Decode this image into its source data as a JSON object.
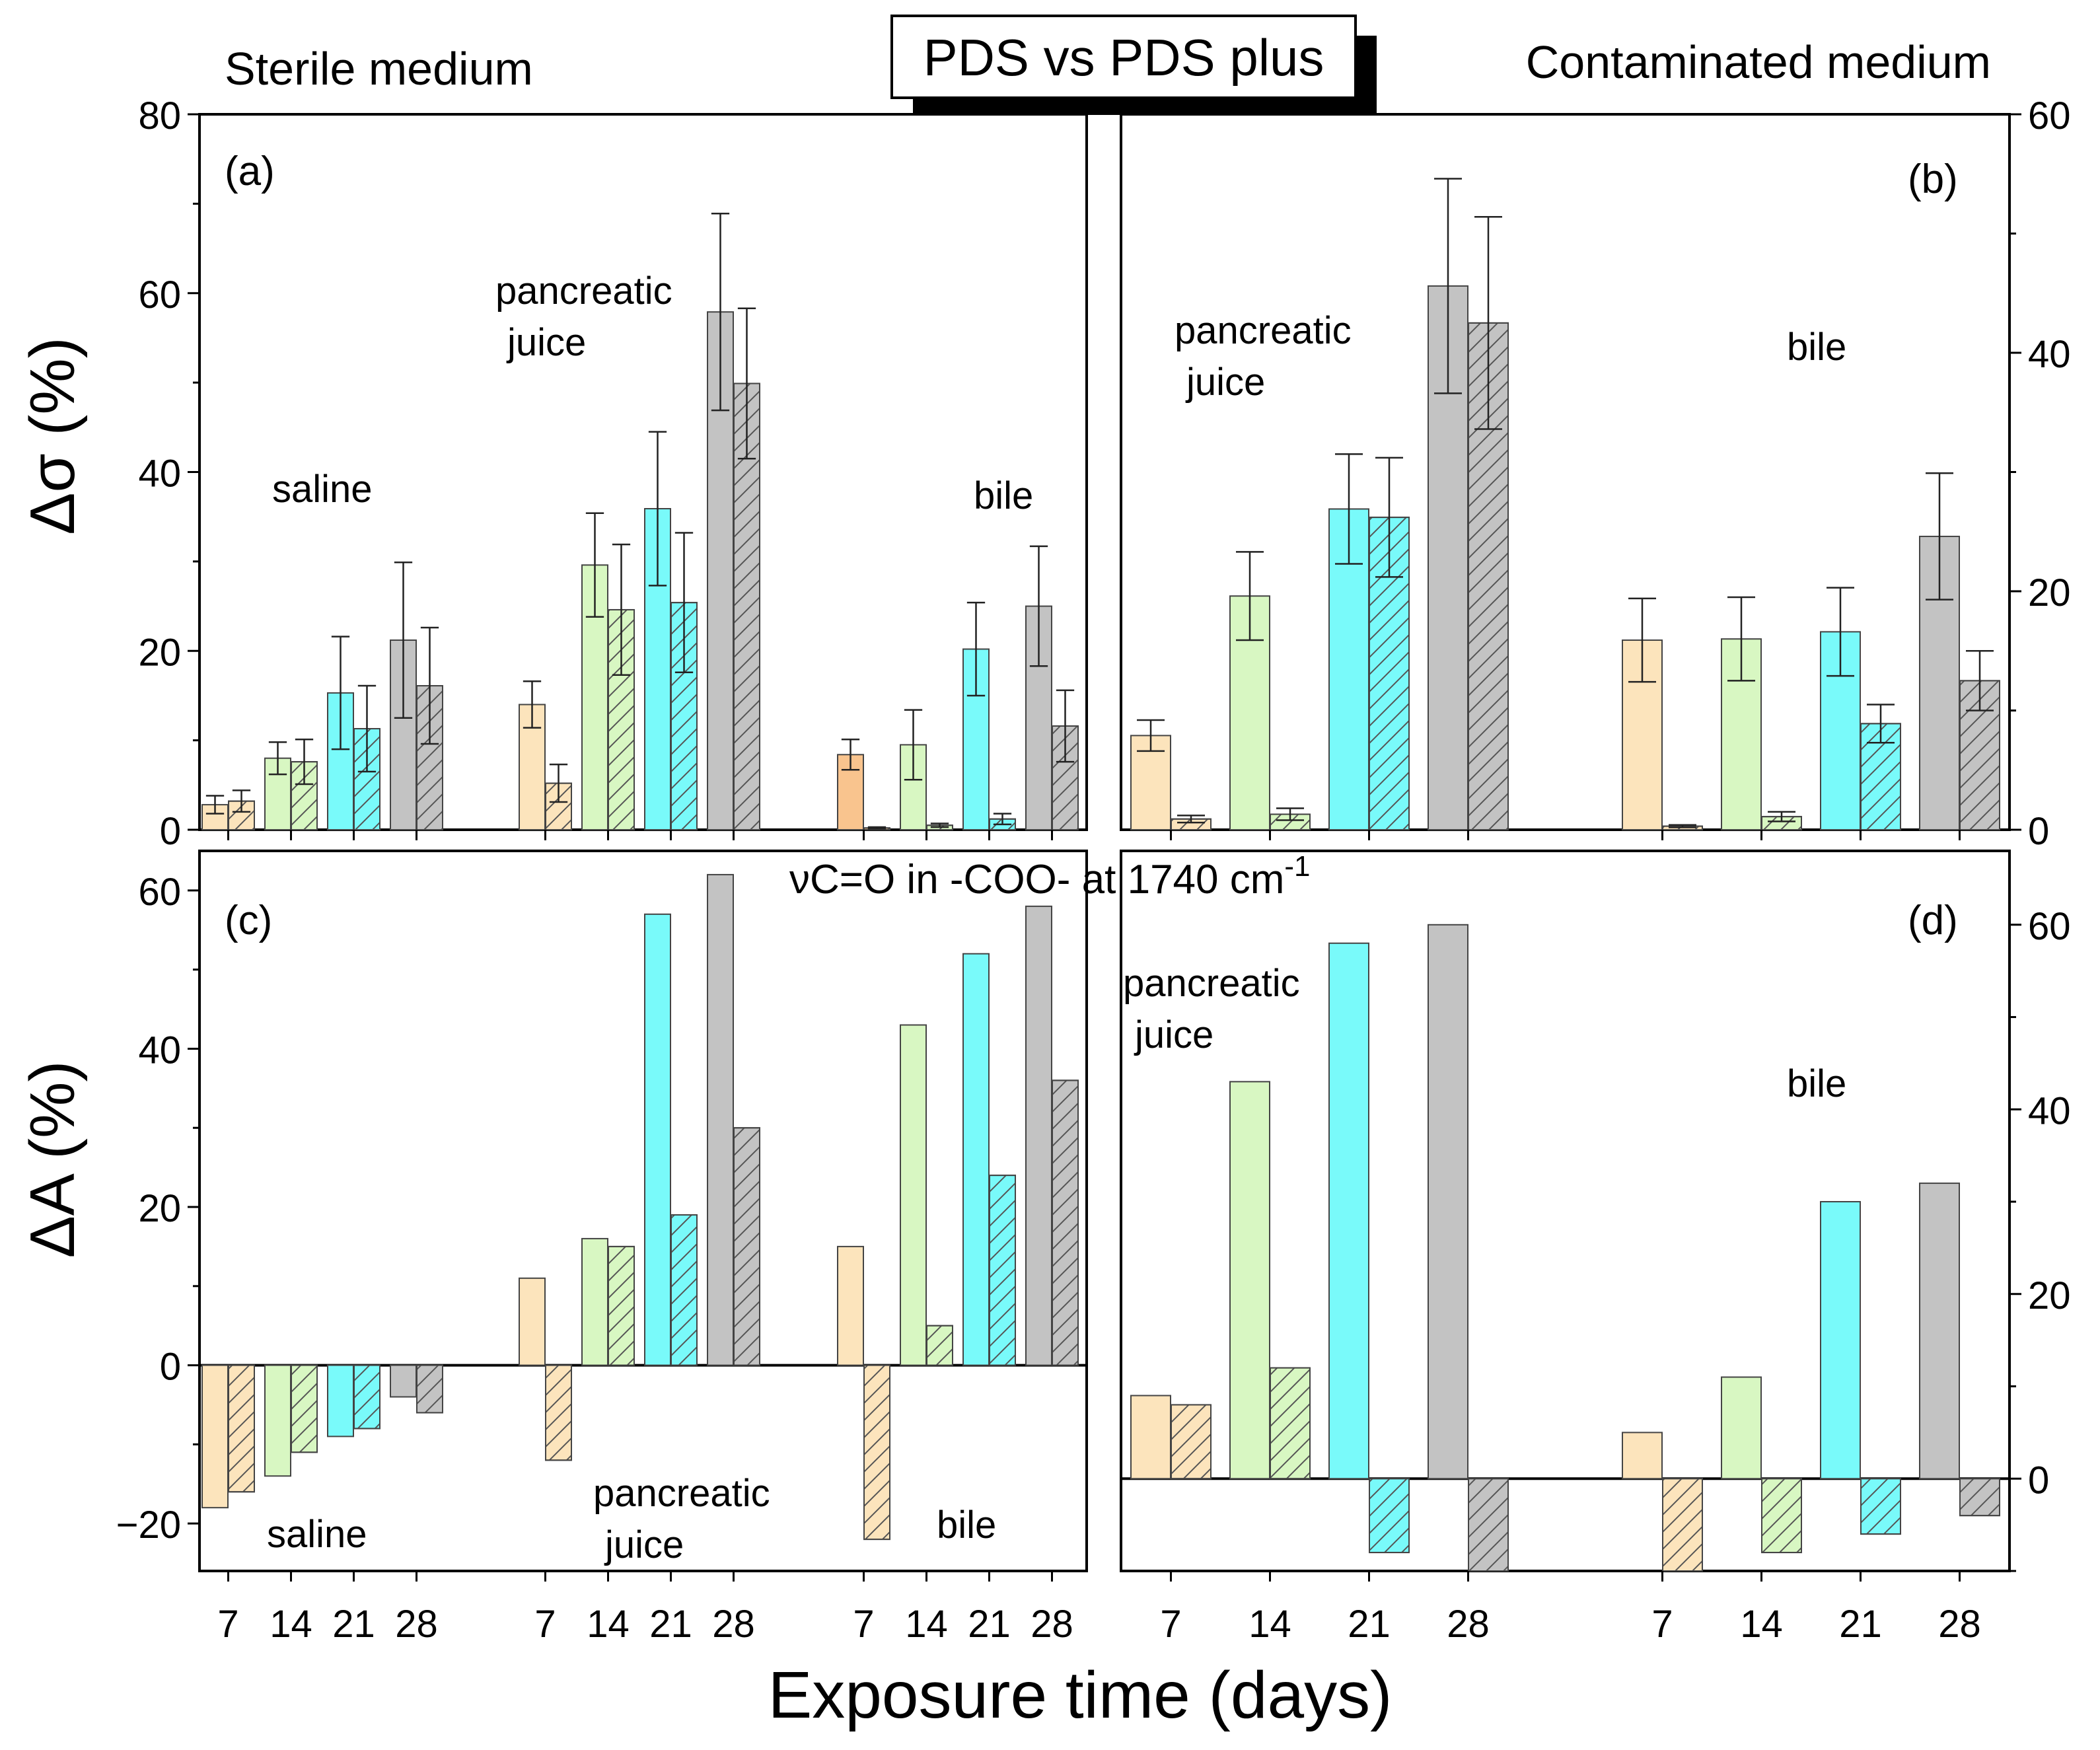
{
  "colors": {
    "day7": "#FCE4BC",
    "day7_highlight": "#F9C48E",
    "day14": "#D8F7C2",
    "day21": "#79FAFA",
    "day28": "#C3C3C3",
    "box_shadow": "#000000"
  },
  "labels": {
    "title_box": "PDS vs PDS plus",
    "sterile": "Sterile medium",
    "contaminated": "Contaminated medium",
    "section_c_title": "νC=O in -COO- at 1740 cm",
    "section_c_sup": "-1",
    "y_top": "Δσ (%)",
    "y_bottom": "ΔA (%)",
    "x_axis": "Exposure time (days)"
  },
  "chart_data": [
    {
      "id": "a",
      "type": "bar",
      "panel_label": "(a)",
      "ylim": [
        0,
        80
      ],
      "yticks": [
        0,
        20,
        40,
        60,
        80
      ],
      "axis_side": "left",
      "annotations": [
        {
          "text": "saline",
          "lines": [
            "saline"
          ]
        },
        {
          "text": "pancreatic juice",
          "lines": [
            "pancreatic",
            "juice"
          ]
        },
        {
          "text": "bile",
          "lines": [
            "bile"
          ]
        }
      ],
      "groups": [
        {
          "name": "saline",
          "categories": [
            "7",
            "14",
            "21",
            "28"
          ],
          "pds": [
            2.8,
            8,
            15.3,
            21.2
          ],
          "pds_err": [
            1,
            1.8,
            6.3,
            8.7
          ],
          "plus": [
            3.2,
            7.6,
            11.3,
            16.1
          ],
          "plus_err": [
            1.2,
            2.5,
            4.8,
            6.5
          ]
        },
        {
          "name": "pancreatic juice",
          "categories": [
            "7",
            "14",
            "21",
            "28"
          ],
          "pds": [
            14,
            29.6,
            35.9,
            57.9
          ],
          "pds_err": [
            2.6,
            5.8,
            8.6,
            11
          ],
          "plus": [
            5.2,
            24.6,
            25.4,
            49.9
          ],
          "plus_err": [
            2.1,
            7.3,
            7.8,
            8.4
          ]
        },
        {
          "name": "bile",
          "categories": [
            "7",
            "14",
            "21",
            "28"
          ],
          "pds": [
            8.4,
            9.5,
            20.2,
            25
          ],
          "pds_err": [
            1.7,
            3.9,
            5.2,
            6.7
          ],
          "plus": [
            0.2,
            0.5,
            1.2,
            11.6
          ],
          "plus_err": [
            0.1,
            0.2,
            0.6,
            4
          ]
        }
      ]
    },
    {
      "id": "b",
      "type": "bar",
      "panel_label": "(b)",
      "ylim": [
        0,
        60
      ],
      "yticks": [
        0,
        20,
        40,
        60
      ],
      "axis_side": "right",
      "annotations": [
        {
          "text": "pancreatic juice",
          "lines": [
            "pancreatic",
            "juice"
          ]
        },
        {
          "text": "bile",
          "lines": [
            "bile"
          ]
        }
      ],
      "groups": [
        {
          "name": "pancreatic juice",
          "categories": [
            "7",
            "14",
            "21",
            "28"
          ],
          "pds": [
            7.9,
            19.6,
            26.9,
            45.6
          ],
          "pds_err": [
            1.3,
            3.7,
            4.6,
            9
          ],
          "plus": [
            0.9,
            1.3,
            26.2,
            42.5
          ],
          "plus_err": [
            0.3,
            0.5,
            5,
            8.9
          ]
        },
        {
          "name": "bile",
          "categories": [
            "7",
            "14",
            "21",
            "28"
          ],
          "pds": [
            15.9,
            16,
            16.6,
            24.6
          ],
          "pds_err": [
            3.5,
            3.5,
            3.7,
            5.3
          ],
          "plus": [
            0.3,
            1.1,
            8.9,
            12.5
          ],
          "plus_err": [
            0.1,
            0.4,
            1.6,
            2.5
          ]
        }
      ]
    },
    {
      "id": "c",
      "type": "bar",
      "panel_label": "(c)",
      "ylim": [
        -26,
        65
      ],
      "yticks": [
        -20,
        0,
        20,
        40,
        60
      ],
      "axis_side": "left",
      "annotations": [
        {
          "text": "saline",
          "lines": [
            "saline"
          ]
        },
        {
          "text": "pancreatic juice",
          "lines": [
            "pancreatic",
            "juice"
          ]
        },
        {
          "text": "bile",
          "lines": [
            "bile"
          ]
        }
      ],
      "groups": [
        {
          "name": "saline",
          "categories": [
            "7",
            "14",
            "21",
            "28"
          ],
          "pds": [
            -18,
            -14,
            -9,
            -4
          ],
          "plus": [
            -16,
            -11,
            -8,
            -6
          ]
        },
        {
          "name": "pancreatic juice",
          "categories": [
            "7",
            "14",
            "21",
            "28"
          ],
          "pds": [
            11,
            16,
            57,
            62
          ],
          "plus": [
            -12,
            15,
            19,
            30
          ]
        },
        {
          "name": "bile",
          "categories": [
            "7",
            "14",
            "21",
            "28"
          ],
          "pds": [
            15,
            43,
            52,
            58
          ],
          "plus": [
            -22,
            5,
            24,
            36
          ]
        }
      ]
    },
    {
      "id": "d",
      "type": "bar",
      "panel_label": "(d)",
      "ylim": [
        -10,
        68
      ],
      "yticks": [
        0,
        20,
        40,
        60
      ],
      "axis_side": "right",
      "annotations": [
        {
          "text": "pancreatic juice",
          "lines": [
            "pancreatic",
            "juice"
          ]
        },
        {
          "text": "bile",
          "lines": [
            "bile"
          ]
        }
      ],
      "groups": [
        {
          "name": "pancreatic juice",
          "categories": [
            "7",
            "14",
            "21",
            "28"
          ],
          "pds": [
            9,
            43,
            58,
            60
          ],
          "plus": [
            8,
            12,
            -8,
            -10
          ]
        },
        {
          "name": "bile",
          "categories": [
            "7",
            "14",
            "21",
            "28"
          ],
          "pds": [
            5,
            11,
            30,
            32
          ],
          "plus": [
            -10,
            -8,
            -6,
            -4
          ]
        }
      ]
    }
  ]
}
